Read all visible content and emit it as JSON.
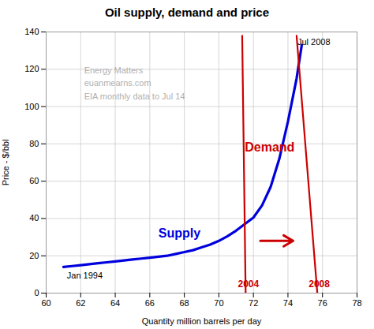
{
  "chart_data": {
    "type": "line",
    "title": "Oil supply, demand and price",
    "x_label": "Quantity million barrels per day",
    "y_label": "Price - $/bbl",
    "xlim": [
      60,
      78
    ],
    "ylim": [
      0,
      140
    ],
    "xticks": [
      60,
      62,
      64,
      66,
      68,
      70,
      72,
      74,
      76,
      78
    ],
    "yticks": [
      0,
      20,
      40,
      60,
      80,
      100,
      120,
      140
    ],
    "grid": true,
    "series": [
      {
        "name": "Supply",
        "color": "#0000dd",
        "label_x": 66.5,
        "label_y": 30,
        "x": [
          61.0,
          61.5,
          62.0,
          62.5,
          63.0,
          63.5,
          64.0,
          64.5,
          65.0,
          65.5,
          66.0,
          66.5,
          67.0,
          67.5,
          68.0,
          68.5,
          69.0,
          69.5,
          70.0,
          70.5,
          71.0,
          71.5,
          72.0,
          72.5,
          73.0,
          73.5,
          74.0,
          74.5,
          74.8
        ],
        "values": [
          14.0,
          14.5,
          15.0,
          15.5,
          16.0,
          16.5,
          17.0,
          17.5,
          18.0,
          18.5,
          19.0,
          19.5,
          20.0,
          21.0,
          22.0,
          23.0,
          24.5,
          26.0,
          28.0,
          30.5,
          33.5,
          37.0,
          40.5,
          47.0,
          57.0,
          72.0,
          92.0,
          115.0,
          133.0
        ]
      },
      {
        "name": "2004",
        "color": "#cc0000",
        "label_x": 71.1,
        "label_y": 3,
        "x": [
          71.55,
          71.35
        ],
        "values": [
          0,
          138
        ]
      },
      {
        "name": "2008",
        "color": "#cc0000",
        "label_x": 75.2,
        "label_y": 3,
        "x": [
          75.7,
          74.5
        ],
        "values": [
          0,
          138
        ]
      }
    ],
    "arrows": [
      {
        "x1": 72.4,
        "y1": 28,
        "x2": 74.3,
        "y2": 28,
        "color": "#cc0000"
      }
    ],
    "annotations": [
      {
        "text": "Demand",
        "x": 71.5,
        "y": 76,
        "color": "#cc0000"
      },
      {
        "text": "Jan 1994",
        "x": 61.2,
        "y": 8,
        "color": "#000000"
      },
      {
        "text": "Jul 2008",
        "x": 74.55,
        "y": 133,
        "color": "#000000"
      },
      {
        "text": "Energy Matters",
        "x": 62.2,
        "y": 118,
        "color": "#b0b0b0"
      },
      {
        "text": "euanmearns.com",
        "x": 62.2,
        "y": 111,
        "color": "#b0b0b0"
      },
      {
        "text": "EIA monthly data to Jul 14",
        "x": 62.2,
        "y": 104,
        "color": "#b0b0b0"
      }
    ]
  }
}
